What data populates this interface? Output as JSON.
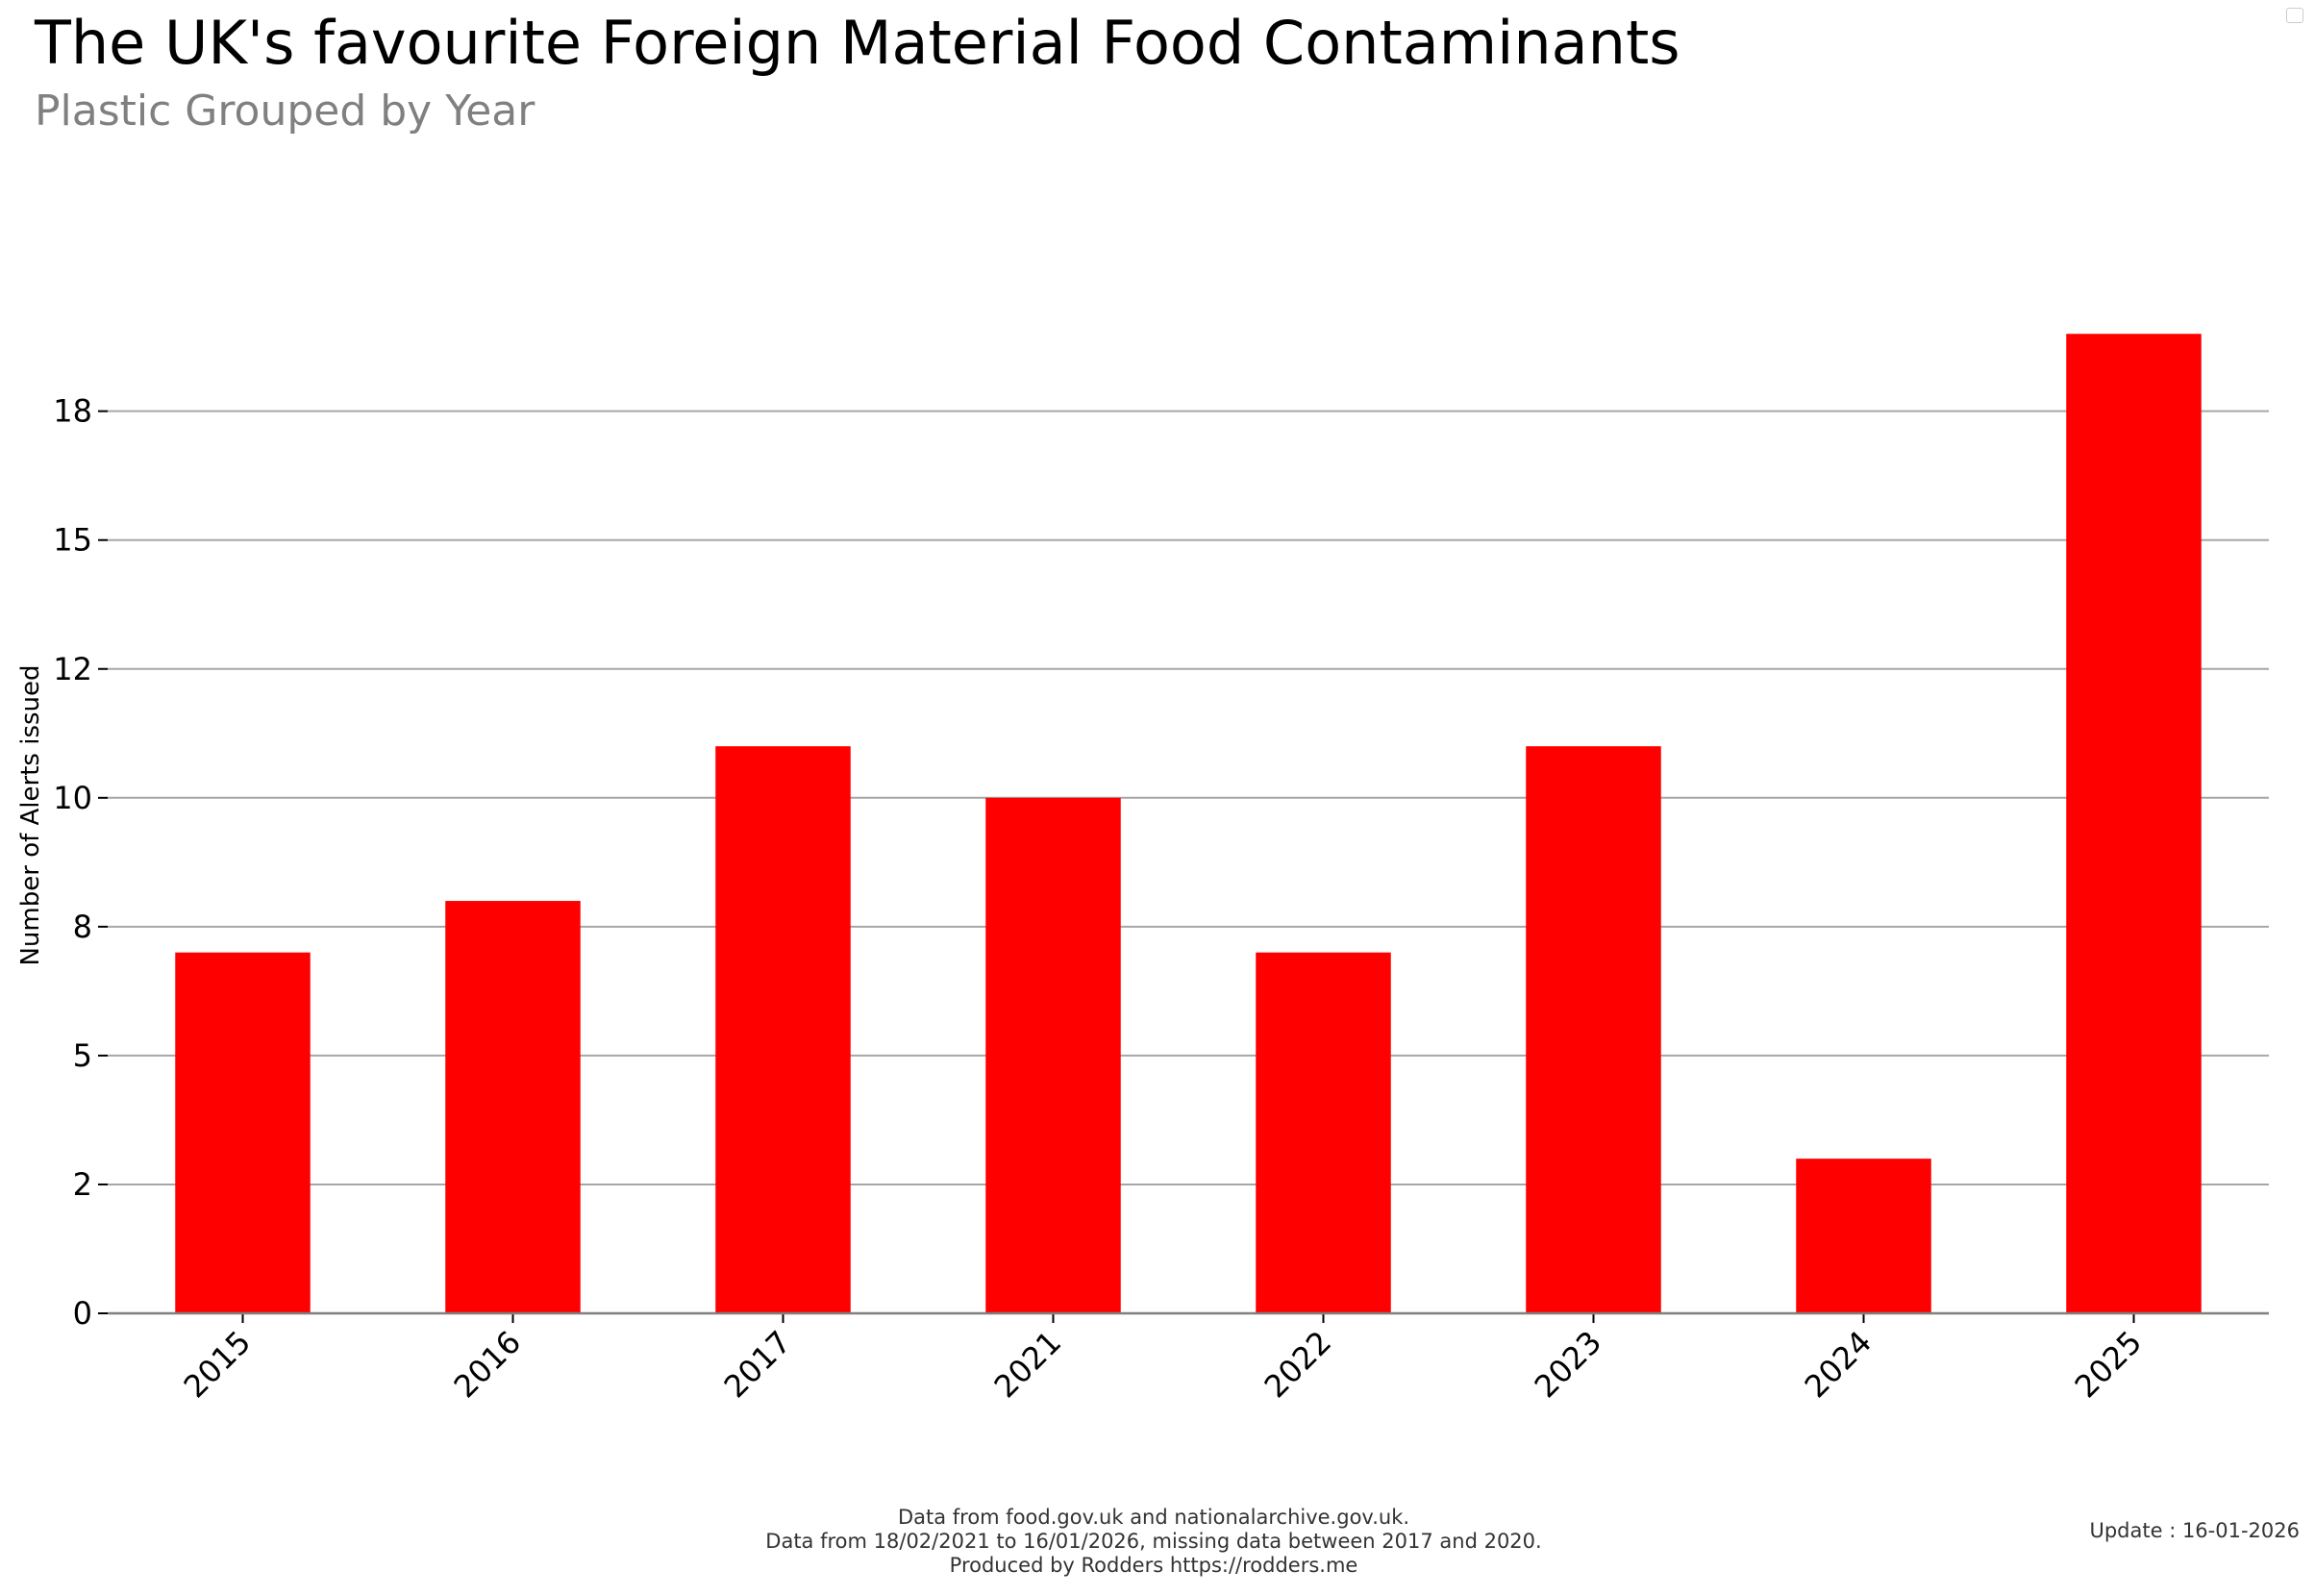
{
  "title": "The UK's favourite Foreign Material Food Contaminants",
  "subtitle": "Plastic Grouped by Year",
  "footer": {
    "line1": "Data from food.gov.uk and nationalarchive.gov.uk.",
    "line2": "Data from 18/02/2021 to 16/01/2026, missing data between 2017 and 2020.",
    "line3": "Produced by Rodders https://rodders.me"
  },
  "update_label": "Update : 16-01-2026",
  "chart_data": {
    "type": "bar",
    "title": "The UK's favourite Foreign Material Food Contaminants",
    "subtitle": "Plastic Grouped by Year",
    "xlabel": "",
    "ylabel": "Number of Alerts issued",
    "categories": [
      "2015",
      "2016",
      "2017",
      "2021",
      "2022",
      "2023",
      "2024",
      "2025"
    ],
    "values": [
      7,
      8,
      11,
      10,
      7,
      11,
      3,
      19
    ],
    "ylim": [
      0,
      21
    ],
    "yticks": [
      0,
      2.5,
      5,
      7.5,
      10,
      12.5,
      15,
      17.5
    ],
    "ytick_labels": [
      "0",
      "2",
      "5",
      "8",
      "10",
      "12",
      "15",
      "18"
    ],
    "bar_color": "#ff0000",
    "grid": true,
    "legend": "top-right"
  }
}
